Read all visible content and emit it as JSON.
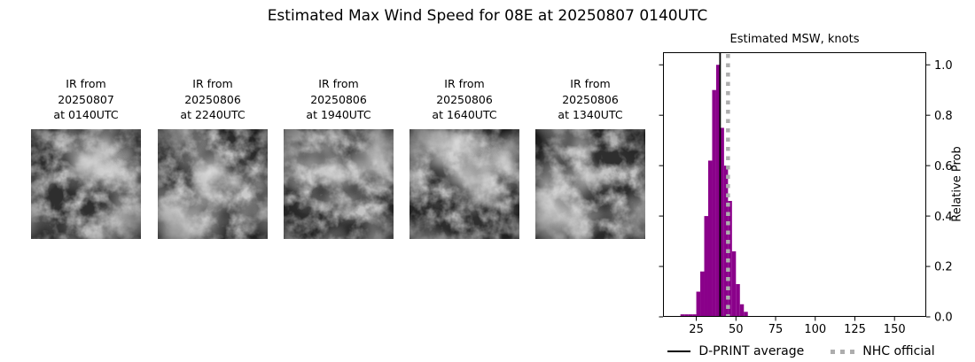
{
  "title": "Estimated Max Wind Speed for 08E at 20250807 0140UTC",
  "ir_panels": [
    {
      "label_lines": [
        "IR from",
        "20250807",
        "at 0140UTC"
      ]
    },
    {
      "label_lines": [
        "IR from",
        "20250806",
        "at 2240UTC"
      ]
    },
    {
      "label_lines": [
        "IR from",
        "20250806",
        "at 1940UTC"
      ]
    },
    {
      "label_lines": [
        "IR from",
        "20250806",
        "at 1640UTC"
      ]
    },
    {
      "label_lines": [
        "IR from",
        "20250806",
        "at 1340UTC"
      ]
    }
  ],
  "chart_data": {
    "type": "bar",
    "title": "Estimated MSW, knots",
    "xlabel": "",
    "ylabel": "Relative Prob",
    "xlim": [
      4,
      170
    ],
    "ylim": [
      0,
      1.05
    ],
    "xticks": [
      25,
      50,
      75,
      100,
      125,
      150
    ],
    "yticks": [
      0.0,
      0.2,
      0.4,
      0.6,
      0.8,
      1.0
    ],
    "grid": false,
    "bin_width_knots": 2.5,
    "bins_left_edge_knots": [
      15,
      17.5,
      20,
      22.5,
      25,
      27.5,
      30,
      32.5,
      35,
      37.5,
      40,
      42.5,
      45,
      47.5,
      50,
      52.5,
      55
    ],
    "relative_prob": [
      0.01,
      0.01,
      0.01,
      0.01,
      0.1,
      0.18,
      0.4,
      0.62,
      0.9,
      1.0,
      0.75,
      0.6,
      0.46,
      0.26,
      0.13,
      0.05,
      0.02
    ],
    "dprint_average_knots": 40,
    "nhc_official_knots": 45,
    "bar_color": "#8A008A",
    "avg_line_color": "#000000",
    "nhc_line_color": "#adadad",
    "legend_position": "bottom",
    "legend": [
      {
        "label": "D-PRINT average",
        "style": "solid-black-line"
      },
      {
        "label": "NHC official",
        "style": "dotted-gray-line"
      }
    ]
  }
}
